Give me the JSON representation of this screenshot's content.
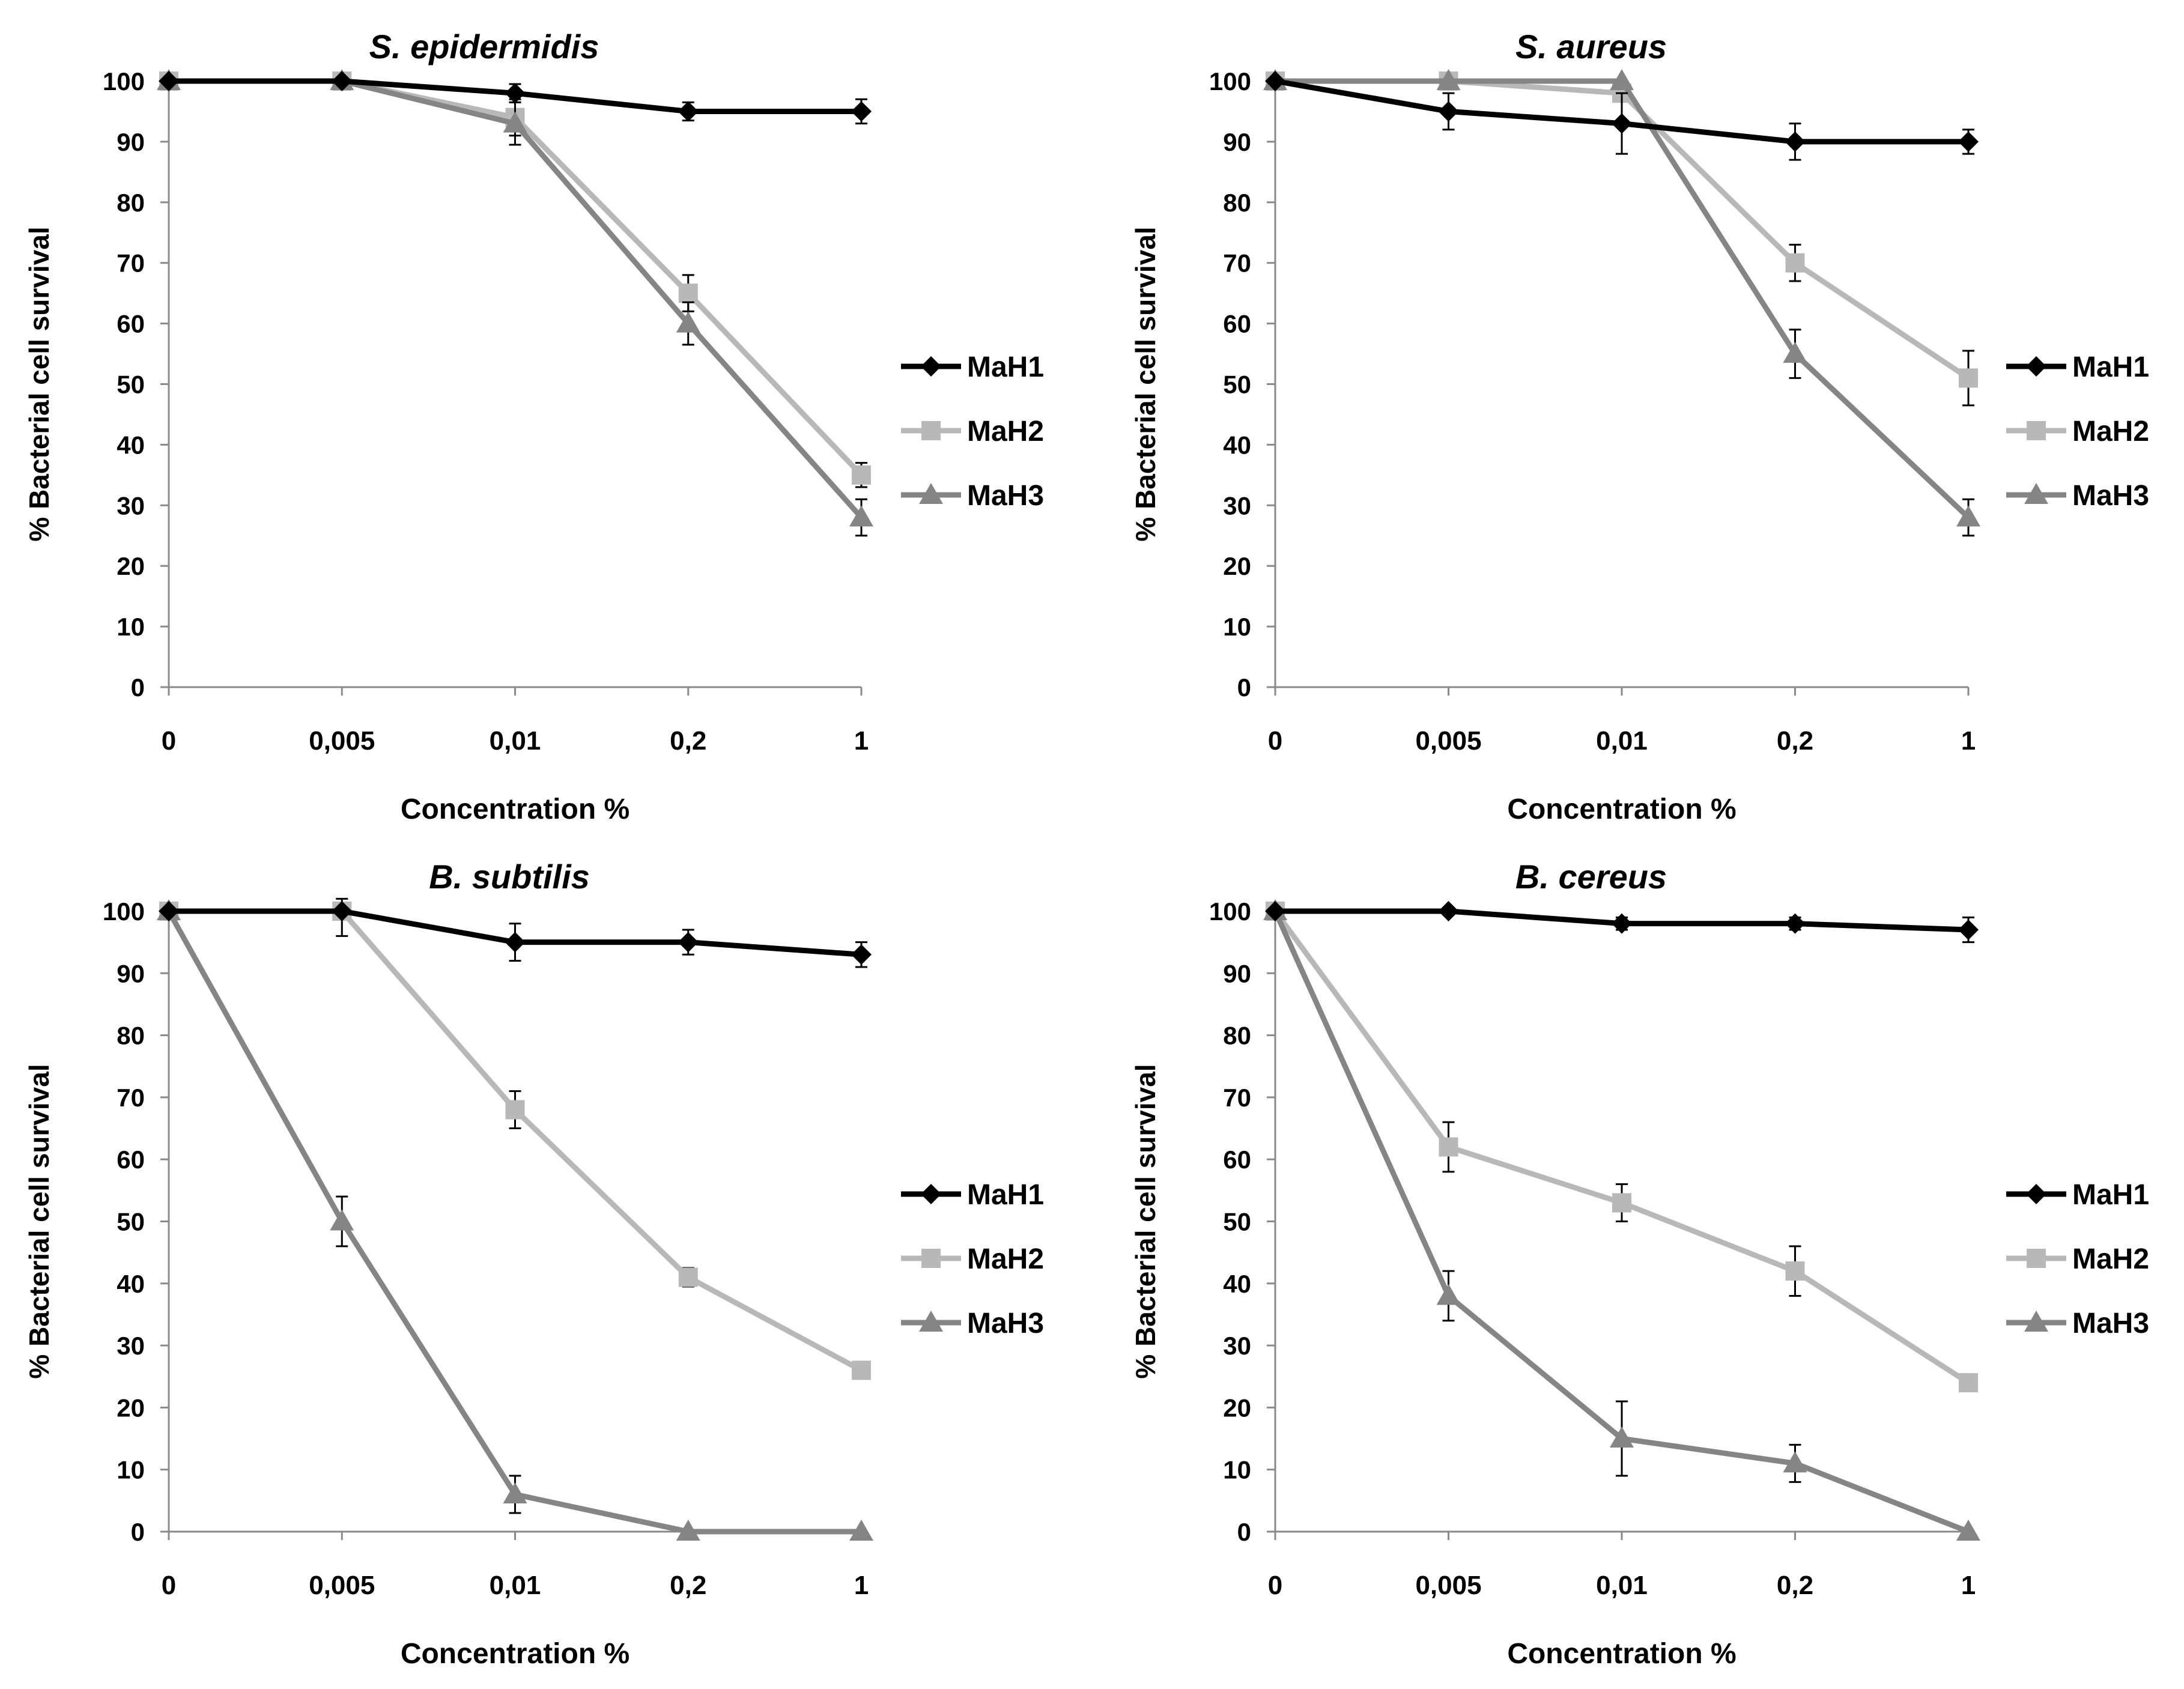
{
  "figure": {
    "ylabel": "% Bacterial cell survival",
    "xlabel": "Concentration %",
    "categories": [
      "0",
      "0,005",
      "0,01",
      "0,2",
      "1"
    ],
    "y_ticks": [
      0,
      10,
      20,
      30,
      40,
      50,
      60,
      70,
      80,
      90,
      100
    ],
    "series_styles": [
      {
        "name": "MaH1",
        "color": "#000000",
        "marker": "diamond"
      },
      {
        "name": "MaH2",
        "color": "#b8b8b8",
        "marker": "square"
      },
      {
        "name": "MaH3",
        "color": "#858585",
        "marker": "triangle"
      }
    ]
  },
  "chart_data": [
    {
      "type": "line",
      "title": "S. epidermidis",
      "xlabel": "Concentration %",
      "ylabel": "% Bacterial cell survival",
      "categories": [
        "0",
        "0,005",
        "0,01",
        "0,2",
        "1"
      ],
      "ylim": [
        0,
        100
      ],
      "legend": [
        "MaH1",
        "MaH2",
        "MaH3"
      ],
      "series": [
        {
          "name": "MaH1",
          "values": [
            100,
            100,
            98,
            95,
            95
          ],
          "errors": [
            0,
            0,
            1.5,
            1.5,
            2
          ]
        },
        {
          "name": "MaH2",
          "values": [
            100,
            100,
            94,
            65,
            35
          ],
          "errors": [
            0,
            0,
            3,
            3,
            2
          ]
        },
        {
          "name": "MaH3",
          "values": [
            100,
            100,
            93,
            60,
            28
          ],
          "errors": [
            0,
            0,
            3.5,
            3.5,
            3
          ]
        }
      ]
    },
    {
      "type": "line",
      "title": "S. aureus",
      "xlabel": "Concentration %",
      "ylabel": "% Bacterial cell survival",
      "categories": [
        "0",
        "0,005",
        "0,01",
        "0,2",
        "1"
      ],
      "ylim": [
        0,
        100
      ],
      "legend": [
        "MaH1",
        "MaH2",
        "MaH3"
      ],
      "series": [
        {
          "name": "MaH1",
          "values": [
            100,
            95,
            93,
            90,
            90
          ],
          "errors": [
            0,
            3,
            5,
            3,
            2
          ]
        },
        {
          "name": "MaH2",
          "values": [
            100,
            100,
            98,
            70,
            51
          ],
          "errors": [
            0,
            0,
            0,
            3,
            4.5
          ]
        },
        {
          "name": "MaH3",
          "values": [
            100,
            100,
            100,
            55,
            28
          ],
          "errors": [
            0,
            0,
            0,
            4,
            3
          ]
        }
      ]
    },
    {
      "type": "line",
      "title": "B. subtilis",
      "xlabel": "Concentration %",
      "ylabel": "% Bacterial cell survival",
      "categories": [
        "0",
        "0,005",
        "0,01",
        "0,2",
        "1"
      ],
      "ylim": [
        0,
        100
      ],
      "legend": [
        "MaH1",
        "MaH2",
        "MaH3"
      ],
      "series": [
        {
          "name": "MaH1",
          "values": [
            100,
            100,
            95,
            95,
            93
          ],
          "errors": [
            0,
            0,
            3,
            2,
            2
          ]
        },
        {
          "name": "MaH2",
          "values": [
            100,
            100,
            68,
            41,
            26
          ],
          "errors": [
            0,
            4,
            3,
            1.5,
            1
          ]
        },
        {
          "name": "MaH3",
          "values": [
            100,
            50,
            6,
            0,
            0
          ],
          "errors": [
            0,
            4,
            3,
            0,
            0
          ]
        }
      ]
    },
    {
      "type": "line",
      "title": "B. cereus",
      "xlabel": "Concentration %",
      "ylabel": "% Bacterial cell survival",
      "categories": [
        "0",
        "0,005",
        "0,01",
        "0,2",
        "1"
      ],
      "ylim": [
        0,
        100
      ],
      "legend": [
        "MaH1",
        "MaH2",
        "MaH3"
      ],
      "series": [
        {
          "name": "MaH1",
          "values": [
            100,
            100,
            98,
            98,
            97
          ],
          "errors": [
            0,
            0,
            1,
            1,
            2
          ]
        },
        {
          "name": "MaH2",
          "values": [
            100,
            62,
            53,
            42,
            24
          ],
          "errors": [
            0,
            4,
            3,
            4,
            1
          ]
        },
        {
          "name": "MaH3",
          "values": [
            100,
            38,
            15,
            11,
            0
          ],
          "errors": [
            0,
            4,
            6,
            3,
            0
          ]
        }
      ]
    }
  ]
}
